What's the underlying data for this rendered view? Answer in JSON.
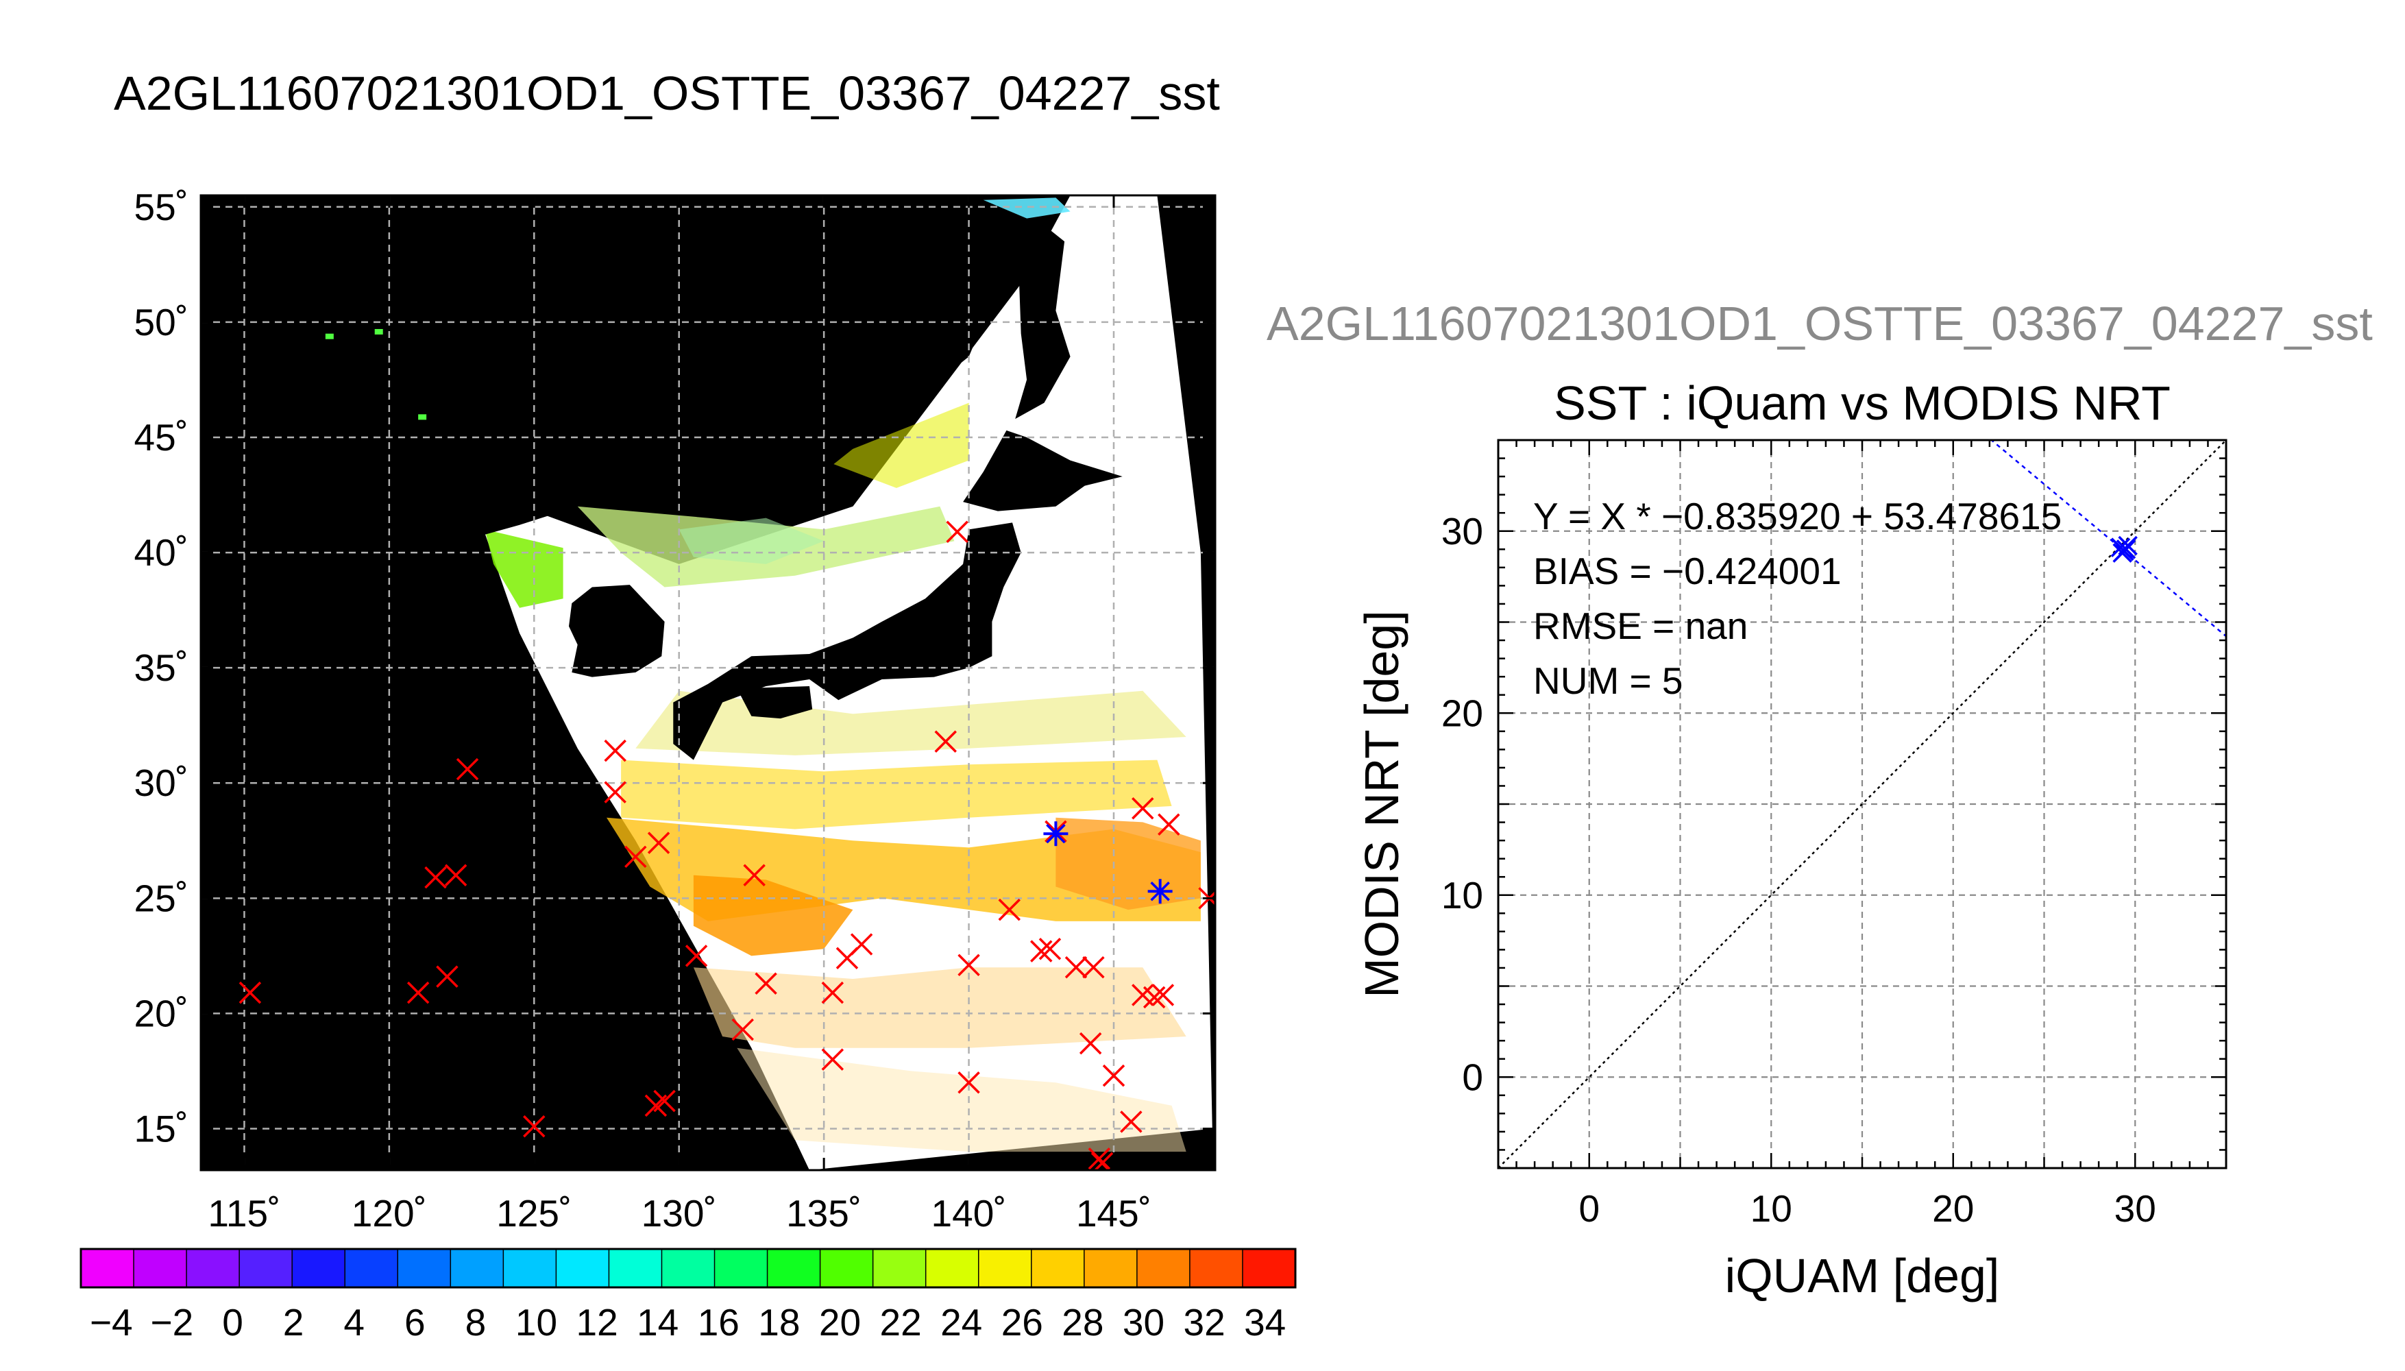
{
  "figure": {
    "main_title": "A2GL11607021301OD1_OSTTE_03367_04227_sst",
    "secondary_title": "A2GL11607021301OD1_OSTTE_03367_04227_sst"
  },
  "colors": {
    "background": "#ffffff",
    "map_background": "#000000",
    "grid": "#b0b0b0",
    "marker_red": "#ff0000",
    "marker_blue": "#0000ff",
    "secondary_title": "#8a8a8a"
  },
  "chart_data": [
    {
      "type": "map",
      "projection": "lat-lon",
      "lon_range": [
        113.5,
        148.5
      ],
      "lat_range": [
        13.2,
        55.5
      ],
      "x_ticks": [
        115,
        120,
        125,
        130,
        135,
        140,
        145
      ],
      "x_tick_labels": [
        "115˚",
        "120˚",
        "125˚",
        "130˚",
        "135˚",
        "140˚",
        "145˚"
      ],
      "y_ticks": [
        15,
        20,
        25,
        30,
        35,
        40,
        45,
        50,
        55
      ],
      "y_tick_labels": [
        "15˚",
        "20˚",
        "25˚",
        "30˚",
        "35˚",
        "40˚",
        "45˚",
        "50˚",
        "55˚"
      ],
      "grid": true,
      "swath_polygon": [
        [
          123.2,
          41.2
        ],
        [
          124.5,
          36.5
        ],
        [
          126.5,
          31.5
        ],
        [
          128.5,
          27.5
        ],
        [
          130.5,
          23.0
        ],
        [
          132.5,
          18.5
        ],
        [
          134.5,
          13.2
        ],
        [
          148.4,
          15.0
        ],
        [
          148.0,
          40.0
        ],
        [
          146.5,
          55.5
        ],
        [
          143.5,
          55.5
        ],
        [
          142.0,
          52.0
        ],
        [
          136.0,
          42.0
        ],
        [
          130.0,
          39.5
        ],
        [
          125.0,
          41.8
        ]
      ],
      "land_polygons": [
        [
          [
            113.5,
            40.0
          ],
          [
            121.0,
            40.0
          ],
          [
            121.8,
            39.0
          ],
          [
            122.5,
            40.5
          ],
          [
            124.5,
            41.2
          ],
          [
            126.5,
            42.0
          ],
          [
            128.5,
            42.5
          ],
          [
            129.5,
            42.0
          ],
          [
            130.5,
            42.5
          ],
          [
            131.5,
            43.2
          ],
          [
            133.0,
            42.7
          ],
          [
            135.0,
            43.5
          ],
          [
            137.0,
            45.5
          ],
          [
            138.5,
            47.0
          ],
          [
            140.0,
            48.5
          ],
          [
            140.5,
            50.0
          ],
          [
            141.0,
            52.0
          ],
          [
            140.5,
            53.5
          ],
          [
            139.0,
            54.2
          ],
          [
            137.5,
            54.0
          ],
          [
            136.5,
            55.5
          ],
          [
            113.5,
            55.5
          ]
        ],
        [
          [
            126.3,
            37.8
          ],
          [
            127.0,
            38.5
          ],
          [
            128.3,
            38.6
          ],
          [
            129.5,
            37.0
          ],
          [
            129.4,
            35.5
          ],
          [
            128.5,
            34.8
          ],
          [
            127.0,
            34.6
          ],
          [
            126.3,
            34.8
          ],
          [
            126.5,
            36.0
          ],
          [
            126.2,
            36.8
          ]
        ],
        [
          [
            129.8,
            33.5
          ],
          [
            131.0,
            34.3
          ],
          [
            132.5,
            35.5
          ],
          [
            134.5,
            35.6
          ],
          [
            136.0,
            36.3
          ],
          [
            137.0,
            37.0
          ],
          [
            138.5,
            38.0
          ],
          [
            139.8,
            39.5
          ],
          [
            140.0,
            41.0
          ],
          [
            141.5,
            41.3
          ],
          [
            141.8,
            40.0
          ],
          [
            141.2,
            38.5
          ],
          [
            140.8,
            37.0
          ],
          [
            140.8,
            35.5
          ],
          [
            140.0,
            35.0
          ],
          [
            138.8,
            34.6
          ],
          [
            137.0,
            34.5
          ],
          [
            135.5,
            33.6
          ],
          [
            134.5,
            34.5
          ],
          [
            133.0,
            34.2
          ],
          [
            131.5,
            33.5
          ],
          [
            130.5,
            31.0
          ],
          [
            129.8,
            31.7
          ]
        ],
        [
          [
            139.8,
            42.2
          ],
          [
            140.5,
            43.5
          ],
          [
            141.3,
            45.3
          ],
          [
            142.0,
            45.0
          ],
          [
            143.5,
            44.0
          ],
          [
            145.3,
            43.3
          ],
          [
            144.0,
            42.9
          ],
          [
            143.0,
            42.0
          ],
          [
            141.0,
            41.8
          ]
        ],
        [
          [
            132.0,
            34.1
          ],
          [
            134.5,
            34.2
          ],
          [
            134.6,
            33.2
          ],
          [
            133.5,
            32.8
          ],
          [
            132.5,
            32.9
          ]
        ],
        [
          [
            141.6,
            45.8
          ],
          [
            142.6,
            46.5
          ],
          [
            143.5,
            48.5
          ],
          [
            143.0,
            50.5
          ],
          [
            143.3,
            53.5
          ],
          [
            142.5,
            54.3
          ],
          [
            141.7,
            53.0
          ],
          [
            141.8,
            49.5
          ],
          [
            142.0,
            47.5
          ]
        ]
      ],
      "markers_red": [
        [
          115.2,
          20.9
        ],
        [
          121.0,
          20.9
        ],
        [
          121.6,
          25.9
        ],
        [
          122.3,
          26.0
        ],
        [
          122.0,
          21.6
        ],
        [
          122.7,
          30.6
        ],
        [
          125.0,
          15.1
        ],
        [
          127.8,
          31.4
        ],
        [
          127.8,
          29.6
        ],
        [
          128.5,
          26.8
        ],
        [
          129.3,
          27.4
        ],
        [
          129.2,
          16.0
        ],
        [
          129.5,
          16.2
        ],
        [
          130.6,
          22.5
        ],
        [
          132.2,
          19.3
        ],
        [
          132.6,
          26.0
        ],
        [
          133.0,
          21.3
        ],
        [
          135.3,
          18.0
        ],
        [
          135.3,
          20.9
        ],
        [
          135.8,
          22.4
        ],
        [
          136.3,
          23.0
        ],
        [
          139.2,
          31.8
        ],
        [
          139.6,
          40.9
        ],
        [
          140.0,
          22.1
        ],
        [
          140.0,
          17.0
        ],
        [
          141.4,
          24.5
        ],
        [
          142.5,
          22.7
        ],
        [
          142.8,
          22.8
        ],
        [
          143.0,
          27.9
        ],
        [
          143.7,
          22.0
        ],
        [
          144.2,
          18.7
        ],
        [
          144.3,
          22.0
        ],
        [
          144.5,
          13.7
        ],
        [
          144.6,
          13.5
        ],
        [
          145.0,
          17.3
        ],
        [
          145.6,
          15.3
        ],
        [
          146.0,
          20.8
        ],
        [
          146.0,
          28.9
        ],
        [
          146.4,
          20.7
        ],
        [
          146.7,
          20.8
        ],
        [
          146.9,
          28.2
        ],
        [
          148.3,
          25.0
        ]
      ],
      "markers_blue": [
        [
          143.0,
          27.8
        ],
        [
          146.6,
          25.3
        ]
      ]
    },
    {
      "type": "colorbar",
      "range": [
        -5,
        35
      ],
      "tick_values": [
        -4,
        -2,
        0,
        2,
        4,
        6,
        8,
        10,
        12,
        14,
        16,
        18,
        20,
        22,
        24,
        26,
        28,
        30,
        32,
        34
      ],
      "tick_labels": [
        "−4",
        "−2",
        "0",
        "2",
        "4",
        "6",
        "8",
        "10",
        "12",
        "14",
        "16",
        "18",
        "20",
        "22",
        "24",
        "26",
        "28",
        "30",
        "32",
        "34"
      ],
      "segment_colors": [
        "#f000ff",
        "#c000ff",
        "#8a10ff",
        "#5520ff",
        "#1818ff",
        "#0840ff",
        "#0070ff",
        "#00a0ff",
        "#00c8ff",
        "#00e8ff",
        "#00ffd8",
        "#00ffa0",
        "#00ff60",
        "#10ff20",
        "#50ff00",
        "#98ff10",
        "#d8ff00",
        "#f8f000",
        "#ffd000",
        "#ffaa00",
        "#ff8000",
        "#ff5000",
        "#ff1800"
      ]
    },
    {
      "type": "scatter",
      "title": "SST : iQuam vs MODIS NRT",
      "xlabel": "iQUAM [deg]",
      "ylabel": "MODIS NRT [deg]",
      "xlim": [
        -5,
        35
      ],
      "ylim": [
        -5,
        35
      ],
      "x_ticks": [
        0,
        10,
        20,
        30
      ],
      "y_ticks": [
        0,
        10,
        20,
        30
      ],
      "x_tick_labels": [
        "0",
        "10",
        "20",
        "30"
      ],
      "y_tick_labels": [
        "0",
        "10",
        "20",
        "30"
      ],
      "grid": true,
      "stats": {
        "equation": "Y = X * −0.835920 + 53.478615",
        "bias": "BIAS = −0.424001",
        "rmse": "RMSE = nan",
        "num": "NUM = 5"
      },
      "points": [
        [
          29.2,
          29.1
        ],
        [
          29.5,
          29.0
        ],
        [
          29.3,
          28.8
        ],
        [
          29.6,
          29.2
        ],
        [
          29.4,
          28.9
        ]
      ],
      "regression_line": {
        "slope": -0.83592,
        "intercept": 53.478615
      },
      "one_to_one_line": true
    }
  ]
}
